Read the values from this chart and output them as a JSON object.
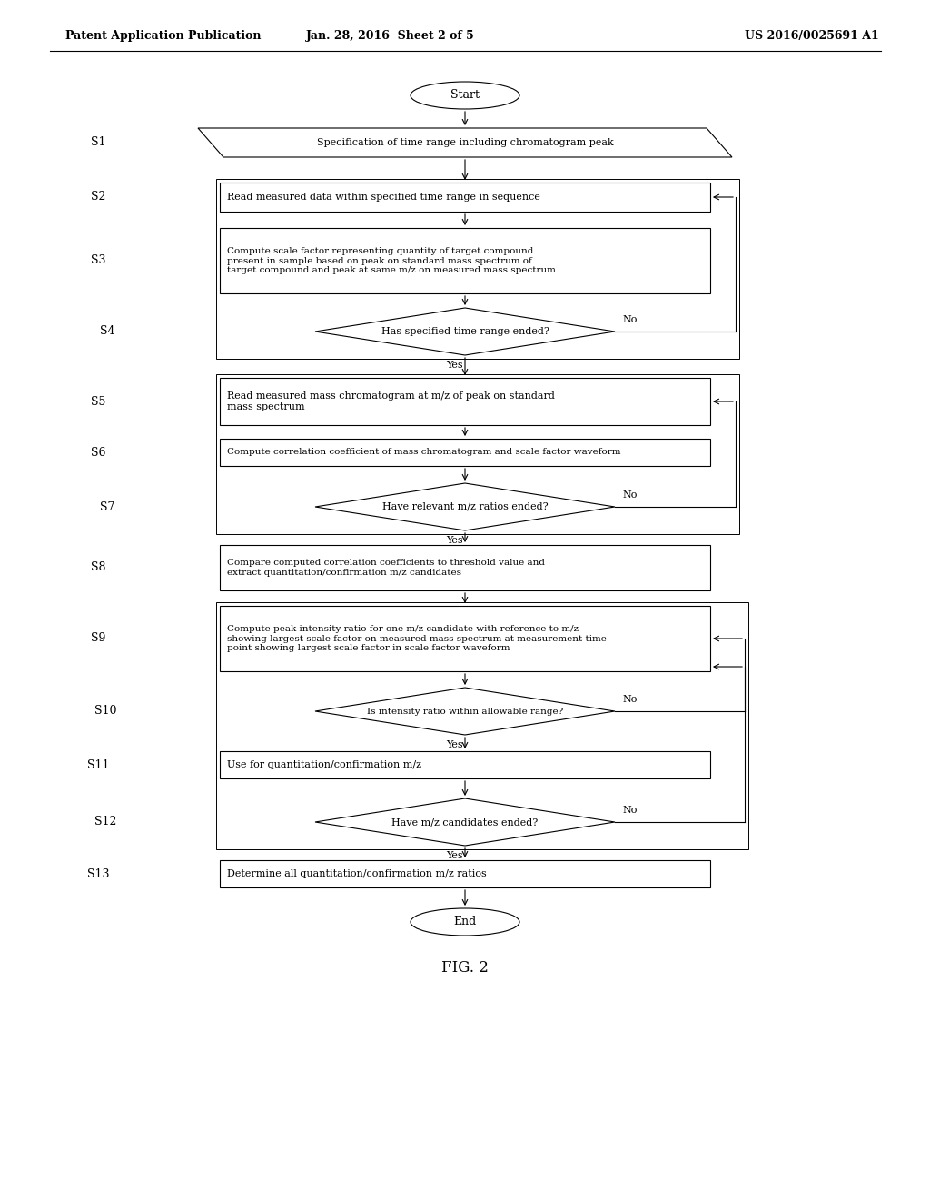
{
  "title_left": "Patent Application Publication",
  "title_mid": "Jan. 28, 2016  Sheet 2 of 5",
  "title_right": "US 2016/0025691 A1",
  "fig_label": "FIG. 2",
  "bg_color": "#ffffff",
  "nodes": [
    {
      "id": "start",
      "type": "oval",
      "text": "Start"
    },
    {
      "id": "S1",
      "type": "parallelogram",
      "label": "S1",
      "text": "Specification of time range including chromatogram peak"
    },
    {
      "id": "S2",
      "type": "rect",
      "label": "S2",
      "text": "Read measured data within specified time range in sequence"
    },
    {
      "id": "S3",
      "type": "rect",
      "label": "S3",
      "text": "Compute scale factor representing quantity of target compound\npresent in sample based on peak on standard mass spectrum of\ntarget compound and peak at same m/z on measured mass spectrum"
    },
    {
      "id": "S4",
      "type": "diamond",
      "label": "S4",
      "text": "Has specified time range ended?"
    },
    {
      "id": "S5",
      "type": "rect",
      "label": "S5",
      "text": "Read measured mass chromatogram at m/z of peak on standard\nmass spectrum"
    },
    {
      "id": "S6",
      "type": "rect",
      "label": "S6",
      "text": "Compute correlation coefficient of mass chromatogram and scale factor waveform"
    },
    {
      "id": "S7",
      "type": "diamond",
      "label": "S7",
      "text": "Have relevant m/z ratios ended?"
    },
    {
      "id": "S8",
      "type": "rect",
      "label": "S8",
      "text": "Compare computed correlation coefficients to threshold value and\nextract quantitation/confirmation m/z candidates"
    },
    {
      "id": "S9",
      "type": "rect",
      "label": "S9",
      "text": "Compute peak intensity ratio for one m/z candidate with reference to m/z\nshowing largest scale factor on measured mass spectrum at measurement time\npoint showing largest scale factor in scale factor waveform"
    },
    {
      "id": "S10",
      "type": "diamond",
      "label": "S10",
      "text": "Is intensity ratio within allowable range?"
    },
    {
      "id": "S11",
      "type": "rect",
      "label": "S11",
      "text": "Use for quantitation/confirmation m/z"
    },
    {
      "id": "S12",
      "type": "diamond",
      "label": "S12",
      "text": "Have m/z candidates ended?"
    },
    {
      "id": "S13",
      "type": "rect",
      "label": "S13",
      "text": "Determine all quantitation/confirmation m/z ratios"
    },
    {
      "id": "end",
      "type": "oval",
      "text": "End"
    }
  ]
}
